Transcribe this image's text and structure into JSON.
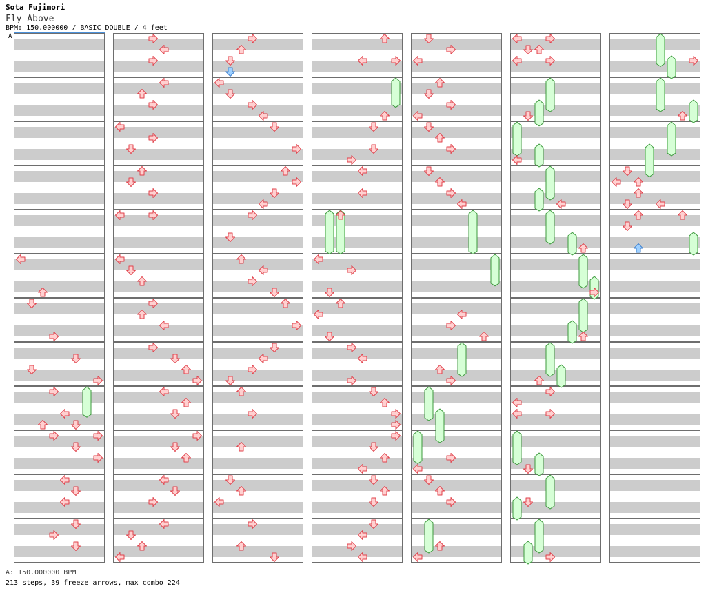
{
  "header": {
    "artist": "Sota Fujimori",
    "title": "Fly Above",
    "info": "BPM: 150.000000 / BASIC DOUBLE / 4 feet",
    "segment_marker": "A"
  },
  "footer": {
    "bpm_line": "A: 150.000000 BPM",
    "stats_line": "213 steps, 39 freeze arrows, max combo 224"
  },
  "colors": {
    "note_fill": "#ffd0d0",
    "note_stroke": "#e0404a",
    "special_fill": "#9ed0ff",
    "special_stroke": "#3a7fd0",
    "freeze_fill": "#d6ffd6",
    "freeze_stroke": "#3c9a3c",
    "band": "#cccccc",
    "border": "#6e6e6e"
  },
  "chart_data": {
    "type": "table",
    "lanes": [
      "P1-left",
      "P1-down",
      "P1-up",
      "P1-right",
      "P2-left",
      "P2-down",
      "P2-up",
      "P2-right"
    ],
    "columns": 7,
    "measures_per_column": 12,
    "notes": [
      [
        0,
        5,
        0,
        0
      ],
      [
        0,
        5,
        3,
        2
      ],
      [
        0,
        5,
        7,
        3
      ],
      [
        0,
        6,
        0,
        1
      ],
      [
        0,
        6,
        3,
        3
      ],
      [
        0,
        6,
        6,
        1
      ],
      [
        0,
        6,
        8,
        3
      ],
      [
        0,
        6,
        11,
        2
      ],
      [
        0,
        7,
        1,
        5
      ],
      [
        0,
        7,
        3,
        7
      ],
      [
        0,
        7,
        6,
        4
      ],
      [
        0,
        7,
        8,
        3
      ],
      [
        0,
        8,
        3,
        5
      ],
      [
        0,
        9,
        0,
        7
      ],
      [
        0,
        9,
        1,
        5
      ],
      [
        0,
        9,
        2,
        7
      ],
      [
        0,
        10,
        0,
        4
      ],
      [
        0,
        10,
        1,
        5
      ],
      [
        0,
        10,
        2,
        4
      ],
      [
        0,
        11,
        0,
        5
      ],
      [
        0,
        11,
        1,
        3
      ],
      [
        0,
        11,
        2,
        5
      ],
      [
        1,
        0,
        0,
        3
      ],
      [
        1,
        0,
        1,
        4
      ],
      [
        1,
        0,
        2,
        3
      ],
      [
        1,
        1,
        0,
        4
      ],
      [
        1,
        1,
        1,
        2
      ],
      [
        1,
        1,
        2,
        3
      ],
      [
        1,
        2,
        0,
        0
      ],
      [
        1,
        2,
        1,
        3
      ],
      [
        1,
        2,
        2,
        1
      ],
      [
        1,
        3,
        0,
        2
      ],
      [
        1,
        3,
        1,
        1
      ],
      [
        1,
        3,
        2,
        3
      ],
      [
        1,
        4,
        0,
        0
      ],
      [
        1,
        4,
        0,
        3
      ],
      [
        1,
        5,
        0,
        0
      ],
      [
        1,
        5,
        1,
        1
      ],
      [
        1,
        5,
        2,
        2
      ],
      [
        1,
        6,
        0,
        3
      ],
      [
        1,
        6,
        1,
        2
      ],
      [
        1,
        6,
        2,
        4
      ],
      [
        1,
        7,
        0,
        3
      ],
      [
        1,
        7,
        1,
        5
      ],
      [
        1,
        7,
        2,
        6
      ],
      [
        1,
        7,
        3,
        7
      ],
      [
        1,
        8,
        0,
        4
      ],
      [
        1,
        8,
        1,
        6
      ],
      [
        1,
        8,
        2,
        5
      ],
      [
        1,
        9,
        0,
        7
      ],
      [
        1,
        9,
        1,
        5
      ],
      [
        1,
        9,
        2,
        6
      ],
      [
        1,
        10,
        0,
        4
      ],
      [
        1,
        10,
        1,
        5
      ],
      [
        1,
        10,
        2,
        3
      ],
      [
        1,
        11,
        0,
        4
      ],
      [
        1,
        11,
        1,
        1
      ],
      [
        1,
        11,
        2,
        2
      ],
      [
        1,
        11,
        3,
        0
      ],
      [
        2,
        0,
        0,
        3
      ],
      [
        2,
        0,
        1,
        2
      ],
      [
        2,
        0,
        2,
        1
      ],
      [
        2,
        1,
        0,
        0
      ],
      [
        2,
        1,
        1,
        1
      ],
      [
        2,
        1,
        2,
        3
      ],
      [
        2,
        1,
        3,
        4
      ],
      [
        2,
        2,
        0,
        5
      ],
      [
        2,
        2,
        2,
        7
      ],
      [
        2,
        3,
        0,
        6
      ],
      [
        2,
        3,
        1,
        7
      ],
      [
        2,
        3,
        2,
        5
      ],
      [
        2,
        3,
        3,
        4
      ],
      [
        2,
        4,
        0,
        3
      ],
      [
        2,
        4,
        2,
        1
      ],
      [
        2,
        5,
        0,
        2
      ],
      [
        2,
        5,
        1,
        4
      ],
      [
        2,
        5,
        2,
        3
      ],
      [
        2,
        5,
        3,
        5
      ],
      [
        2,
        6,
        0,
        6
      ],
      [
        2,
        6,
        2,
        7
      ],
      [
        2,
        7,
        0,
        5
      ],
      [
        2,
        7,
        1,
        4
      ],
      [
        2,
        7,
        2,
        3
      ],
      [
        2,
        7,
        3,
        1
      ],
      [
        2,
        8,
        0,
        2
      ],
      [
        2,
        8,
        2,
        3
      ],
      [
        2,
        9,
        1,
        2
      ],
      [
        2,
        10,
        0,
        1
      ],
      [
        2,
        10,
        1,
        2
      ],
      [
        2,
        10,
        2,
        0
      ],
      [
        2,
        11,
        0,
        3
      ],
      [
        2,
        11,
        2,
        2
      ],
      [
        2,
        11,
        3,
        5
      ],
      [
        3,
        0,
        0,
        6
      ],
      [
        3,
        0,
        2,
        4
      ],
      [
        3,
        0,
        2,
        7
      ],
      [
        3,
        1,
        3,
        6
      ],
      [
        3,
        2,
        0,
        5
      ],
      [
        3,
        2,
        2,
        5
      ],
      [
        3,
        2,
        3,
        3
      ],
      [
        3,
        3,
        0,
        4
      ],
      [
        3,
        3,
        2,
        4
      ],
      [
        3,
        4,
        0,
        2
      ],
      [
        3,
        5,
        0,
        0
      ],
      [
        3,
        5,
        1,
        3
      ],
      [
        3,
        5,
        3,
        1
      ],
      [
        3,
        6,
        0,
        2
      ],
      [
        3,
        6,
        1,
        0
      ],
      [
        3,
        6,
        3,
        1
      ],
      [
        3,
        7,
        0,
        3
      ],
      [
        3,
        7,
        1,
        4
      ],
      [
        3,
        7,
        3,
        3
      ],
      [
        3,
        8,
        0,
        5
      ],
      [
        3,
        8,
        1,
        6
      ],
      [
        3,
        8,
        2,
        7
      ],
      [
        3,
        8,
        3,
        7
      ],
      [
        3,
        9,
        0,
        7
      ],
      [
        3,
        9,
        1,
        5
      ],
      [
        3,
        9,
        2,
        6
      ],
      [
        3,
        9,
        3,
        4
      ],
      [
        3,
        10,
        0,
        5
      ],
      [
        3,
        10,
        1,
        6
      ],
      [
        3,
        10,
        2,
        5
      ],
      [
        3,
        11,
        0,
        5
      ],
      [
        3,
        11,
        1,
        4
      ],
      [
        3,
        11,
        2,
        3
      ],
      [
        3,
        11,
        3,
        4
      ],
      [
        4,
        0,
        0,
        1
      ],
      [
        4,
        0,
        1,
        3
      ],
      [
        4,
        0,
        2,
        0
      ],
      [
        4,
        1,
        0,
        2
      ],
      [
        4,
        1,
        1,
        1
      ],
      [
        4,
        1,
        2,
        3
      ],
      [
        4,
        1,
        3,
        0
      ],
      [
        4,
        2,
        0,
        1
      ],
      [
        4,
        2,
        1,
        2
      ],
      [
        4,
        2,
        2,
        3
      ],
      [
        4,
        3,
        0,
        1
      ],
      [
        4,
        3,
        1,
        2
      ],
      [
        4,
        3,
        2,
        3
      ],
      [
        4,
        3,
        3,
        4
      ],
      [
        4,
        6,
        1,
        4
      ],
      [
        4,
        6,
        2,
        3
      ],
      [
        4,
        6,
        3,
        6
      ],
      [
        4,
        7,
        2,
        2
      ],
      [
        4,
        7,
        3,
        3
      ],
      [
        4,
        9,
        2,
        3
      ],
      [
        4,
        9,
        3,
        0
      ],
      [
        4,
        10,
        0,
        1
      ],
      [
        4,
        10,
        1,
        2
      ],
      [
        4,
        10,
        2,
        3
      ],
      [
        4,
        11,
        2,
        2
      ],
      [
        4,
        11,
        3,
        0
      ],
      [
        5,
        0,
        0,
        0
      ],
      [
        5,
        0,
        0,
        3
      ],
      [
        5,
        0,
        1,
        1
      ],
      [
        5,
        0,
        1,
        2
      ],
      [
        5,
        0,
        2,
        0
      ],
      [
        5,
        0,
        2,
        3
      ],
      [
        5,
        1,
        3,
        1
      ],
      [
        5,
        2,
        3,
        0
      ],
      [
        5,
        3,
        3,
        4
      ],
      [
        5,
        4,
        3,
        6
      ],
      [
        5,
        5,
        3,
        7
      ],
      [
        5,
        6,
        3,
        6
      ],
      [
        5,
        7,
        3,
        2
      ],
      [
        5,
        8,
        0,
        3
      ],
      [
        5,
        8,
        1,
        0
      ],
      [
        5,
        8,
        2,
        0
      ],
      [
        5,
        8,
        2,
        3
      ],
      [
        5,
        9,
        3,
        1
      ],
      [
        5,
        10,
        2,
        1
      ],
      [
        5,
        11,
        3,
        3
      ],
      [
        6,
        0,
        2,
        7
      ],
      [
        6,
        1,
        3,
        6
      ],
      [
        6,
        3,
        0,
        1
      ],
      [
        6,
        3,
        1,
        0
      ],
      [
        6,
        3,
        1,
        2
      ],
      [
        6,
        3,
        2,
        2
      ],
      [
        6,
        3,
        3,
        1
      ],
      [
        6,
        3,
        3,
        4
      ],
      [
        6,
        4,
        0,
        2
      ],
      [
        6,
        4,
        0,
        6
      ],
      [
        6,
        4,
        1,
        1
      ]
    ],
    "special_notes": [
      [
        2,
        0,
        3,
        1
      ],
      [
        6,
        4,
        3,
        2
      ]
    ],
    "freezes": [
      [
        0,
        8,
        0,
        6,
        1.7
      ],
      [
        1,
        0,
        0,
        0,
        0
      ],
      [
        3,
        1,
        0,
        7,
        1.6
      ],
      [
        3,
        4,
        0,
        1,
        2.9
      ],
      [
        3,
        4,
        0,
        2,
        2.9
      ],
      [
        4,
        4,
        0,
        5,
        2.9
      ],
      [
        4,
        5,
        0,
        7,
        1.8
      ],
      [
        4,
        7,
        0,
        4,
        2.0
      ],
      [
        4,
        8,
        0,
        1,
        2.0
      ],
      [
        4,
        8,
        2,
        2,
        2.0
      ],
      [
        4,
        9,
        0,
        0,
        1.9
      ],
      [
        4,
        11,
        0,
        1,
        2.0
      ],
      [
        5,
        1,
        0,
        3,
        2.0
      ],
      [
        5,
        1,
        2,
        2,
        1.3
      ],
      [
        5,
        2,
        0,
        0,
        2.0
      ],
      [
        5,
        2,
        2,
        2,
        1.0
      ],
      [
        5,
        3,
        0,
        3,
        2.0
      ],
      [
        5,
        3,
        2,
        2,
        1.0
      ],
      [
        5,
        4,
        0,
        3,
        2.0
      ],
      [
        5,
        4,
        2,
        5,
        1.0
      ],
      [
        5,
        5,
        0,
        6,
        2.0
      ],
      [
        5,
        5,
        2,
        7,
        1.0
      ],
      [
        5,
        6,
        0,
        6,
        2.0
      ],
      [
        5,
        6,
        2,
        5,
        1.0
      ],
      [
        5,
        7,
        0,
        3,
        2.0
      ],
      [
        5,
        7,
        2,
        4,
        1.0
      ],
      [
        5,
        9,
        0,
        0,
        2.0
      ],
      [
        5,
        9,
        2,
        2,
        1.0
      ],
      [
        5,
        10,
        0,
        3,
        2.0
      ],
      [
        5,
        10,
        2,
        0,
        1.0
      ],
      [
        5,
        11,
        0,
        2,
        2.0
      ],
      [
        5,
        11,
        2,
        1,
        1.0
      ],
      [
        6,
        0,
        0,
        4,
        1.9
      ],
      [
        6,
        0,
        2,
        5,
        1.0
      ],
      [
        6,
        1,
        0,
        4,
        2.0
      ],
      [
        6,
        1,
        2,
        7,
        1.0
      ],
      [
        6,
        2,
        0,
        5,
        2.0
      ],
      [
        6,
        2,
        2,
        3,
        1.9
      ],
      [
        6,
        4,
        2,
        7,
        1.0
      ]
    ]
  }
}
